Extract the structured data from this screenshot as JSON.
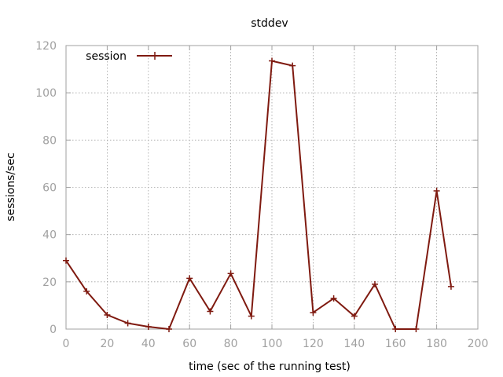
{
  "chart_data": {
    "type": "line",
    "title": "stddev",
    "xlabel": "time (sec of the running test)",
    "ylabel": "sessions/sec",
    "xlim": [
      0,
      200
    ],
    "ylim": [
      0,
      120
    ],
    "xticks": [
      0,
      20,
      40,
      60,
      80,
      100,
      120,
      140,
      160,
      180,
      200
    ],
    "yticks": [
      0,
      20,
      40,
      60,
      80,
      100,
      120
    ],
    "grid": true,
    "legend": "top-left",
    "series": [
      {
        "name": "session",
        "color": "#7f1a10",
        "x": [
          0,
          10,
          20,
          30,
          40,
          50,
          60,
          70,
          80,
          90,
          100,
          110,
          120,
          130,
          140,
          150,
          160,
          170,
          180,
          187
        ],
        "y": [
          29,
          16,
          6,
          2.5,
          1,
          0,
          21.5,
          7.5,
          23.5,
          5.5,
          113.5,
          111.5,
          7,
          13,
          5.5,
          19,
          0,
          0,
          58.5,
          18
        ]
      }
    ]
  }
}
